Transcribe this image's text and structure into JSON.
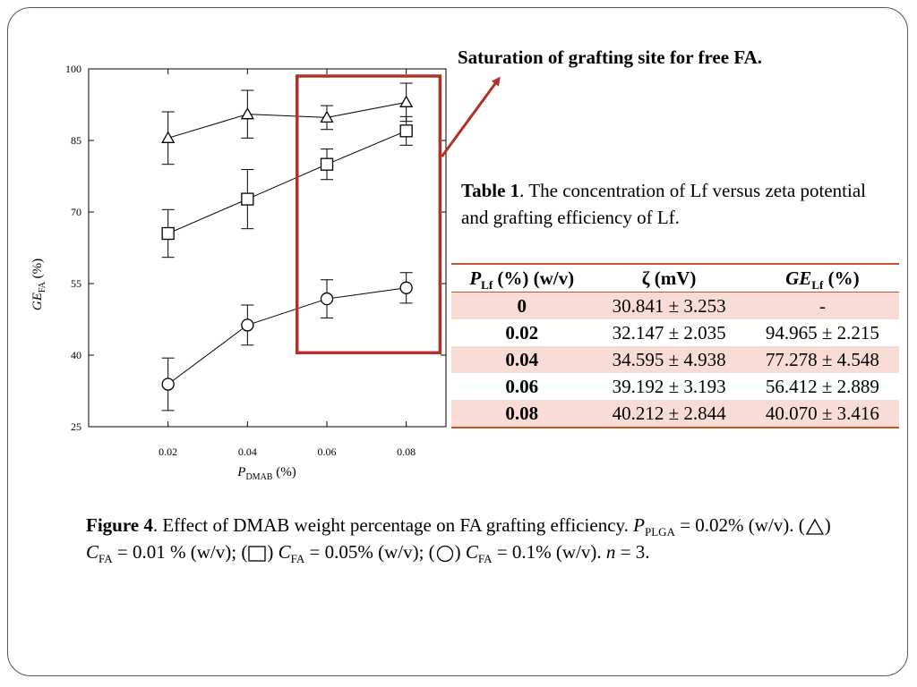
{
  "callout": "Saturation of grafting site for free FA.",
  "table": {
    "caption_bold": "Table 1",
    "caption_text": ". The concentration of  Lf versus zeta potential and grafting efficiency of Lf.",
    "headers": {
      "col1_main": "P",
      "col1_sub": "Lf",
      "col1_rest": " (%) (w/v)",
      "col2": "ζ (mV)",
      "col3_main": "GE",
      "col3_sub": "Lf",
      "col3_rest": " (%)"
    },
    "rows": [
      {
        "p": "0",
        "zeta": "30.841 ± 3.253",
        "ge": "-"
      },
      {
        "p": "0.02",
        "zeta": "32.147 ± 2.035",
        "ge": "94.965 ± 2.215"
      },
      {
        "p": "0.04",
        "zeta": "34.595 ± 4.938",
        "ge": "77.278 ± 4.548"
      },
      {
        "p": "0.06",
        "zeta": "39.192 ± 3.193",
        "ge": "56.412 ± 2.889"
      },
      {
        "p": "0.08",
        "zeta": "40.212 ± 2.844",
        "ge": "40.070 ± 3.416"
      }
    ]
  },
  "figure_caption": {
    "bold": "Figure 4",
    "t1": ". Effect of DMAB weight percentage on FA grafting efficiency. ",
    "p_main": "P",
    "p_sub": "PLGA",
    "t2": " = 0.02% (w/v). (",
    "t3": ") ",
    "c_main": "C",
    "c_sub": "FA",
    "t4": " = 0.01 % (w/v); (",
    "t5": " = 0.05% (w/v); (",
    "t6": " = 0.1% (w/v). ",
    "n_main": "n",
    "t7": " = 3."
  },
  "chart_data": {
    "type": "line",
    "x": [
      0.02,
      0.04,
      0.06,
      0.08
    ],
    "x_tick_labels": [
      "0.02",
      "0.04",
      "0.06",
      "0.08"
    ],
    "y_tick_labels": [
      "25",
      "40",
      "55",
      "70",
      "85",
      "100"
    ],
    "xlim": [
      0.0,
      0.09
    ],
    "ylim": [
      25,
      100
    ],
    "xlabel": {
      "main": "P",
      "sub": "DMAB",
      "rest": " (%)"
    },
    "ylabel": {
      "main": "GE",
      "sub": "FA",
      "rest": " (%)"
    },
    "series": [
      {
        "marker": "triangle",
        "values": [
          85.5,
          90.5,
          89.8,
          93.0
        ],
        "errors": [
          5.5,
          5.0,
          2.5,
          4.0
        ]
      },
      {
        "marker": "square",
        "values": [
          65.5,
          72.7,
          80.0,
          87.0
        ],
        "errors": [
          5.0,
          6.2,
          3.2,
          3.0
        ]
      },
      {
        "marker": "circle",
        "values": [
          33.9,
          46.3,
          51.8,
          54.1
        ],
        "errors": [
          5.5,
          4.2,
          4.0,
          3.2
        ]
      }
    ],
    "highlight": {
      "x_range": [
        0.0525,
        0.0885
      ],
      "y_range": [
        40.5,
        98.5
      ],
      "color": "#b0302a"
    },
    "grid": false,
    "legend": "none"
  }
}
